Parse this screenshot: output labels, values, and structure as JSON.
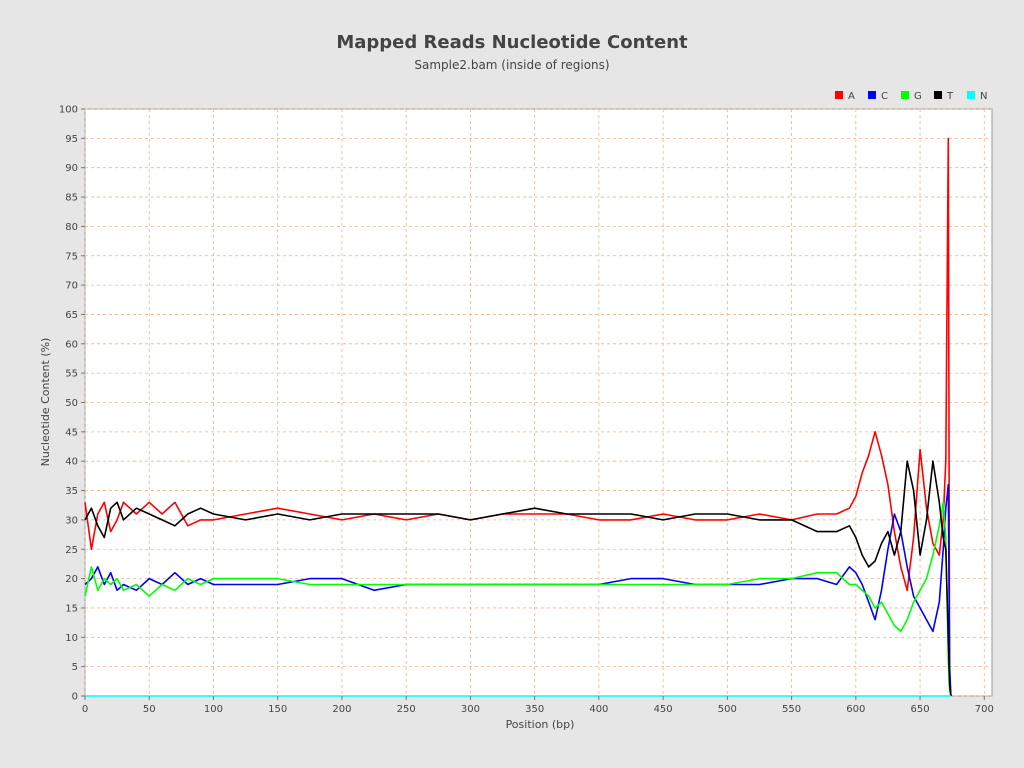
{
  "chart_data": {
    "type": "line",
    "title": "Mapped Reads Nucleotide Content",
    "subtitle": "Sample2.bam (inside of regions)",
    "xlabel": "Position (bp)",
    "ylabel": "Nucleotide Content (%)",
    "xlim": [
      0,
      706
    ],
    "ylim": [
      0,
      100
    ],
    "xticks": [
      0,
      50,
      100,
      150,
      200,
      250,
      300,
      350,
      400,
      450,
      500,
      550,
      600,
      650,
      700
    ],
    "yticks": [
      0,
      5,
      10,
      15,
      20,
      25,
      30,
      35,
      40,
      45,
      50,
      55,
      60,
      65,
      70,
      75,
      80,
      85,
      90,
      95,
      100
    ],
    "grid": true,
    "legend_position": "top-right",
    "x": [
      0,
      5,
      10,
      15,
      20,
      25,
      30,
      40,
      50,
      60,
      70,
      80,
      90,
      100,
      125,
      150,
      175,
      200,
      225,
      250,
      275,
      300,
      325,
      350,
      375,
      400,
      425,
      450,
      475,
      500,
      525,
      550,
      570,
      585,
      595,
      600,
      605,
      610,
      615,
      620,
      625,
      630,
      635,
      640,
      645,
      650,
      655,
      660,
      665,
      668,
      670,
      672,
      673,
      674
    ],
    "series": [
      {
        "name": "A",
        "color": "#ff0000",
        "values": [
          33,
          25,
          31,
          33,
          28,
          30,
          33,
          31,
          33,
          31,
          33,
          29,
          30,
          30,
          31,
          32,
          31,
          30,
          31,
          30,
          31,
          30,
          31,
          31,
          31,
          30,
          30,
          31,
          30,
          30,
          31,
          30,
          31,
          31,
          32,
          34,
          38,
          41,
          45,
          41,
          36,
          28,
          22,
          18,
          27,
          42,
          32,
          26,
          24,
          30,
          40,
          95,
          2,
          0
        ]
      },
      {
        "name": "C",
        "color": "#0000ff",
        "values": [
          19,
          20,
          22,
          19,
          21,
          18,
          19,
          18,
          20,
          19,
          21,
          19,
          20,
          19,
          19,
          19,
          20,
          20,
          18,
          19,
          19,
          19,
          19,
          19,
          19,
          19,
          20,
          20,
          19,
          19,
          19,
          20,
          20,
          19,
          22,
          21,
          19,
          16,
          13,
          18,
          25,
          31,
          28,
          22,
          17,
          15,
          13,
          11,
          16,
          25,
          32,
          36,
          5,
          0
        ]
      },
      {
        "name": "G",
        "color": "#00ff00",
        "values": [
          17,
          22,
          18,
          20,
          19,
          20,
          18,
          19,
          17,
          19,
          18,
          20,
          19,
          20,
          20,
          20,
          19,
          19,
          19,
          19,
          19,
          19,
          19,
          19,
          19,
          19,
          19,
          19,
          19,
          19,
          20,
          20,
          21,
          21,
          19,
          19,
          18,
          17,
          15,
          16,
          14,
          12,
          11,
          13,
          16,
          18,
          20,
          24,
          29,
          33,
          27,
          6,
          1,
          0
        ]
      },
      {
        "name": "T",
        "color": "#000000",
        "values": [
          30,
          32,
          29,
          27,
          32,
          33,
          30,
          32,
          31,
          30,
          29,
          31,
          32,
          31,
          30,
          31,
          30,
          31,
          31,
          31,
          31,
          30,
          31,
          32,
          31,
          31,
          31,
          30,
          31,
          31,
          30,
          30,
          28,
          28,
          29,
          27,
          24,
          22,
          23,
          26,
          28,
          24,
          28,
          40,
          35,
          24,
          30,
          40,
          33,
          27,
          25,
          10,
          2,
          0
        ]
      },
      {
        "name": "N",
        "color": "#00ffff",
        "values": [
          0,
          0,
          0,
          0,
          0,
          0,
          0,
          0,
          0,
          0,
          0,
          0,
          0,
          0,
          0,
          0,
          0,
          0,
          0,
          0,
          0,
          0,
          0,
          0,
          0,
          0,
          0,
          0,
          0,
          0,
          0,
          0,
          0,
          0,
          0,
          0,
          0,
          0,
          0,
          0,
          0,
          0,
          0,
          0,
          0,
          0,
          0,
          0,
          0,
          0,
          0,
          0,
          0,
          0
        ]
      }
    ]
  }
}
